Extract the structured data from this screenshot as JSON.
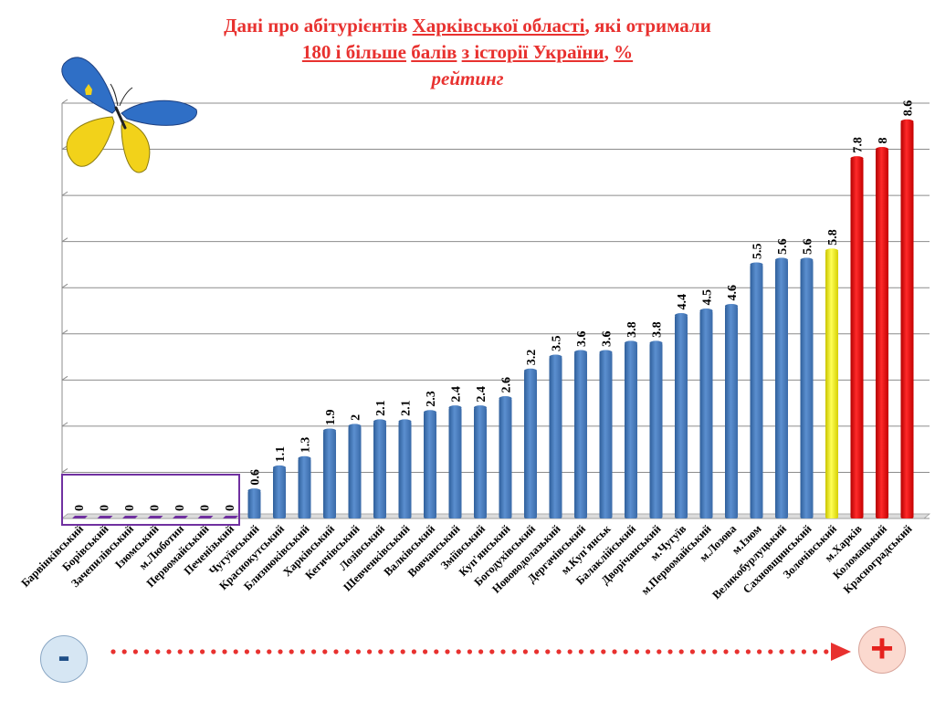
{
  "title": {
    "line1_pre": "Дані про абітурієнтів ",
    "line1_region": "Харківської  області",
    "line1_post": ", які отримали",
    "line2_a": "180 і більше",
    "line2_b": "балів",
    "line2_c": "з історії України",
    "line2_sep": " ",
    "line2_comma": ", ",
    "line2_pct": "%",
    "line3": "рейтинг"
  },
  "legend_signs": {
    "minus": "-",
    "plus": "+"
  },
  "colors": {
    "bar_default": "#4a7ebb",
    "bar_highlight": "#ffff33",
    "bar_top": "#ee1111",
    "zero_box": "#7030a0",
    "arrow": "#e8312f"
  },
  "chart_data": {
    "type": "bar",
    "title": "Дані про абітурієнтів Харківської  області, які отримали 180 і більше балів з історії України, %",
    "subtitle": "рейтинг",
    "ylim": [
      0,
      9
    ],
    "grid": true,
    "categories": [
      "Барвінківський",
      "Борівський",
      "Зачепилівський",
      "Ізюмський",
      "м.Люботин",
      "Первомайський",
      "Печенізький",
      "Чугуївський",
      "Краснокутський",
      "Близнюківський",
      "Харківський",
      "Кегичівський",
      "Лозівський",
      "Шевченківський",
      "Валківський",
      "Вовчанський",
      "Зміївський",
      "Куп'янський",
      "Богодухівський",
      "Нововодолазький",
      "Дергачівський",
      "м.Куп'янськ",
      "Балаклійський",
      "Дворічанський",
      "м.Чугуїв",
      "м.Первомайський",
      "м.Лозова",
      "м.Ізюм",
      "Великобурлуцький",
      "Сахновщинський",
      "Золочівський",
      "м.Харків",
      "Коломацький",
      "Красноградський"
    ],
    "values": [
      0,
      0,
      0,
      0,
      0,
      0,
      0,
      0.6,
      1.1,
      1.3,
      1.9,
      2,
      2.1,
      2.1,
      2.3,
      2.4,
      2.4,
      2.6,
      3.2,
      3.5,
      3.6,
      3.6,
      3.8,
      3.8,
      4.4,
      4.5,
      4.6,
      5.5,
      5.6,
      5.6,
      5.8,
      7.8,
      8,
      8.6
    ],
    "value_labels": [
      "0",
      "0",
      "0",
      "0",
      "0",
      "0",
      "0",
      "0.6",
      "1.1",
      "1.3",
      "1.9",
      "2",
      "2.1",
      "2.1",
      "2.3",
      "2.4",
      "2.4",
      "2.6",
      "3.2",
      "3.5",
      "3.6",
      "3.6",
      "3.8",
      "3.8",
      "4.4",
      "4.5",
      "4.6",
      "5.5",
      "5.6",
      "5.6",
      "5.8",
      "7.8",
      "8",
      "8.6"
    ],
    "highlight_index": 30,
    "top_indices": [
      31,
      32,
      33
    ]
  }
}
